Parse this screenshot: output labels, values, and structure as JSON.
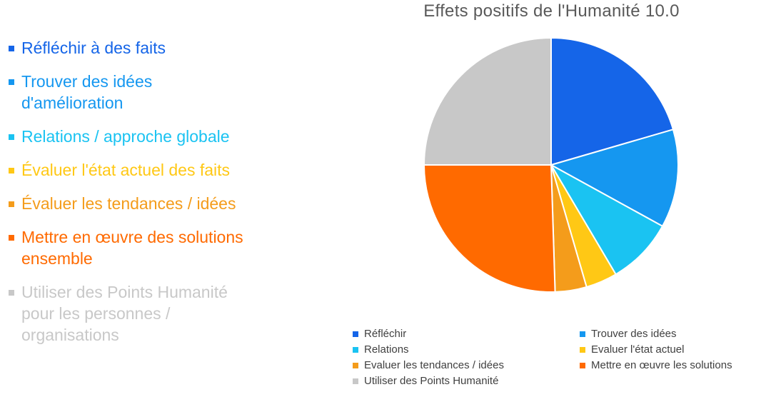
{
  "bullets": [
    {
      "text": "Réfléchir à des faits",
      "color": "#1565E8"
    },
    {
      "text": "Trouver des idées d'amélioration",
      "color": "#1597F0"
    },
    {
      "text": "Relations / approche globale",
      "color": "#1AC3F2"
    },
    {
      "text": "Évaluer l'état actuel des faits",
      "color": "#FFC815"
    },
    {
      "text": "Évaluer les tendances / idées",
      "color": "#F49C1B"
    },
    {
      "text": "Mettre en œuvre des solutions ensemble",
      "color": "#FF6A00"
    },
    {
      "text": "Utiliser des Points Humanité pour les personnes / organisations",
      "color": "#C8C8C8"
    }
  ],
  "chart_data": {
    "type": "pie",
    "title": "Effets positifs de l'Humanité 10.0",
    "categories": [
      "Réfléchir",
      "Trouver des idées",
      "Relations",
      "Evaluer l'état actuel",
      "Evaluer les tendances / idées",
      "Mettre en œuvre les solutions",
      "Utiliser des Points Humanité"
    ],
    "values": [
      20.5,
      12.5,
      8.5,
      4.0,
      4.0,
      25.5,
      25.0
    ],
    "colors": [
      "#1565E8",
      "#1597F0",
      "#1AC3F2",
      "#FFC815",
      "#F49C1B",
      "#FF6A00",
      "#C8C8C8"
    ],
    "start_angle": "12 o'clock",
    "direction": "clockwise",
    "legend_position": "bottom"
  }
}
